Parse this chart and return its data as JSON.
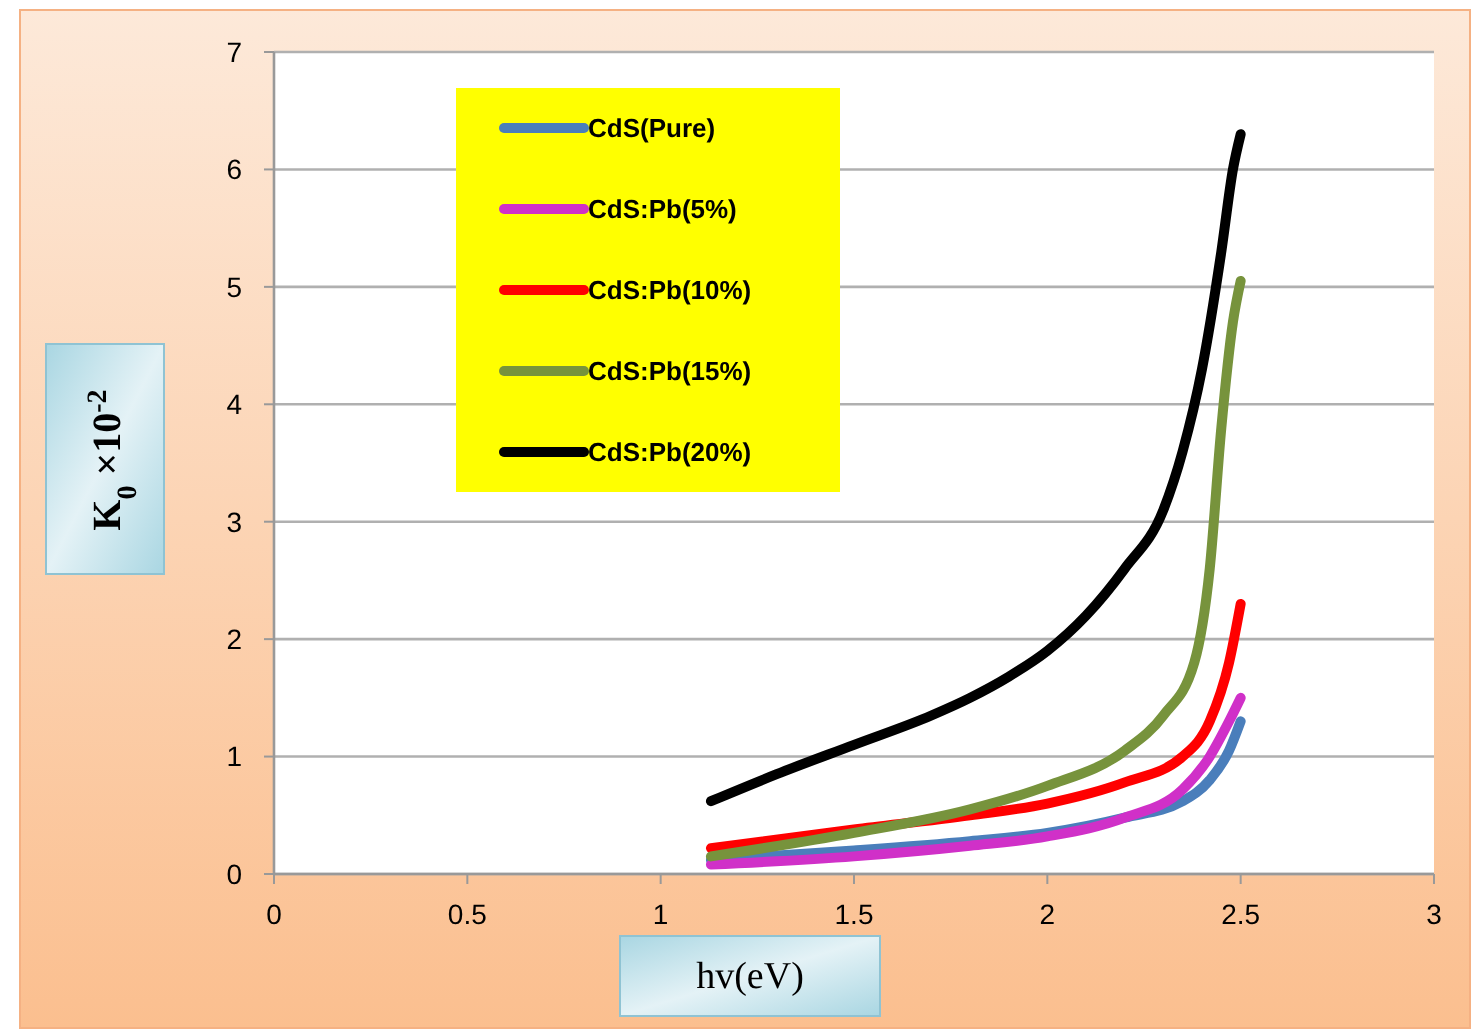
{
  "chart_data": {
    "type": "line",
    "xlabel": "hv(eV)",
    "ylabel": "K$_{0}$ ×10$^{-2}$",
    "xlim": [
      0,
      3
    ],
    "xticks": [
      0,
      0.5,
      1,
      1.5,
      2,
      2.5,
      3
    ],
    "ylim": [
      0,
      7
    ],
    "yticks": [
      0,
      1,
      2,
      3,
      4,
      5,
      6,
      7
    ],
    "grid": "y",
    "legend": "top left",
    "marker": "none",
    "line_style": "solid",
    "x": [
      1.13,
      1.5,
      1.8,
      2.0,
      2.2,
      2.35,
      2.42,
      2.47,
      2.5
    ],
    "series": [
      {
        "name": "CdS(Pure)",
        "color": "#4a7ebb",
        "values": [
          0.12,
          0.2,
          0.28,
          0.35,
          0.48,
          0.62,
          0.8,
          1.05,
          1.3
        ]
      },
      {
        "name": "CdS:Pb(5%)",
        "color": "#d030c8",
        "values": [
          0.08,
          0.15,
          0.24,
          0.32,
          0.48,
          0.72,
          1.0,
          1.3,
          1.5
        ]
      },
      {
        "name": "CdS:Pb(10%)",
        "color": "#ff0000",
        "values": [
          0.22,
          0.38,
          0.5,
          0.6,
          0.78,
          1.0,
          1.3,
          1.8,
          2.3
        ]
      },
      {
        "name": "CdS:Pb(15%)",
        "color": "#77933c",
        "x": [
          1.13,
          1.5,
          1.8,
          2.0,
          2.2,
          2.3,
          2.38,
          2.42,
          2.45,
          2.48,
          2.5
        ],
        "values": [
          0.15,
          0.35,
          0.55,
          0.75,
          1.05,
          1.35,
          1.8,
          2.6,
          3.8,
          4.7,
          5.05
        ]
      },
      {
        "name": "CdS:Pb(20%)",
        "color": "#000000",
        "x": [
          1.13,
          1.3,
          1.5,
          1.7,
          1.8,
          1.9,
          2.0,
          2.1,
          2.2,
          2.3,
          2.35,
          2.4,
          2.45,
          2.48,
          2.5
        ],
        "values": [
          0.62,
          0.85,
          1.1,
          1.35,
          1.5,
          1.68,
          1.9,
          2.2,
          2.6,
          3.1,
          3.6,
          4.3,
          5.3,
          6.0,
          6.3
        ]
      }
    ]
  }
}
